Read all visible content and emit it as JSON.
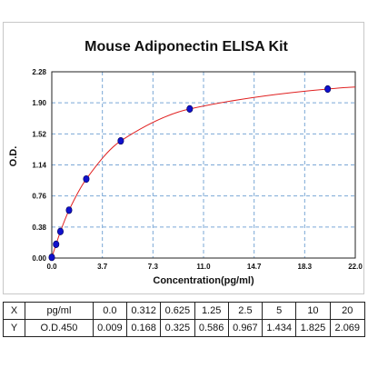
{
  "chart_data": {
    "type": "scatter",
    "title": "Mouse Adiponectin ELISA Kit",
    "xlabel": "Concentration(pg/ml)",
    "ylabel": "O.D.",
    "xlim": [
      0,
      22
    ],
    "ylim": [
      0,
      2.28
    ],
    "x_ticks": [
      "0.0",
      "3.7",
      "7.3",
      "11.0",
      "14.7",
      "18.3",
      "22.0"
    ],
    "y_ticks": [
      "0.00",
      "0.38",
      "0.76",
      "1.14",
      "1.52",
      "1.90",
      "2.28"
    ],
    "grid": true,
    "point_color": "#1010cc",
    "curve_color": "#e02020",
    "points": [
      {
        "x": 0,
        "y": 0.009
      },
      {
        "x": 0.312,
        "y": 0.168
      },
      {
        "x": 0.625,
        "y": 0.325
      },
      {
        "x": 1.25,
        "y": 0.586
      },
      {
        "x": 2.5,
        "y": 0.967
      },
      {
        "x": 5,
        "y": 1.434
      },
      {
        "x": 10,
        "y": 1.825
      },
      {
        "x": 20,
        "y": 2.069
      }
    ]
  },
  "table": {
    "rows": [
      {
        "label": "X",
        "unit": "pg/ml",
        "values": [
          "0.0",
          "0.312",
          "0.625",
          "1.25",
          "2.5",
          "5",
          "10",
          "20"
        ]
      },
      {
        "label": "Y",
        "unit": "O.D.450",
        "values": [
          "0.009",
          "0.168",
          "0.325",
          "0.586",
          "0.967",
          "1.434",
          "1.825",
          "2.069"
        ]
      }
    ]
  }
}
